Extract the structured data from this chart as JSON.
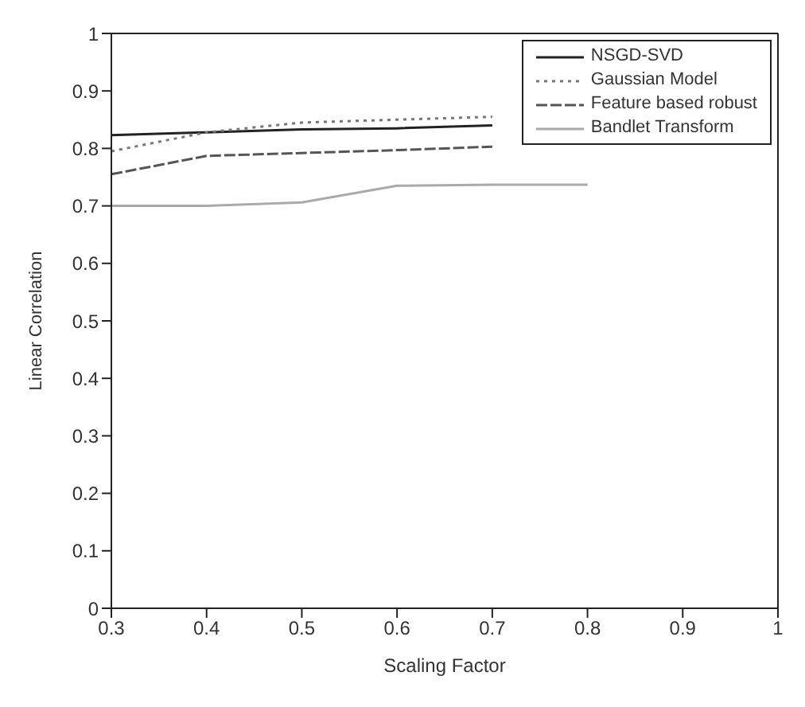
{
  "chart_data": {
    "type": "line",
    "xlabel": "Scaling Factor",
    "ylabel": "Linear Correlation",
    "x": [
      0.3,
      0.4,
      0.5,
      0.6,
      0.7,
      0.8
    ],
    "series": [
      {
        "name": "NSGD-SVD",
        "color": "#222222",
        "line_style": "solid",
        "values": [
          0.823,
          0.828,
          0.833,
          0.835,
          0.84,
          null
        ]
      },
      {
        "name": "Gaussian Model",
        "color": "#777777",
        "line_style": "dotted",
        "values": [
          0.795,
          0.828,
          0.845,
          0.85,
          0.855,
          null
        ]
      },
      {
        "name": "Feature based robust",
        "color": "#555555",
        "line_style": "dashed",
        "values": [
          0.755,
          0.787,
          0.792,
          0.797,
          0.803,
          null
        ]
      },
      {
        "name": "Bandlet Transform",
        "color": "#aaaaaa",
        "line_style": "solid",
        "values": [
          0.7,
          0.7,
          0.706,
          0.735,
          0.737,
          0.737
        ]
      }
    ],
    "xlim": [
      0.3,
      1
    ],
    "xticks": [
      0.3,
      0.4,
      0.5,
      0.6,
      0.7,
      0.8,
      0.9,
      1
    ],
    "ylim": [
      0,
      1
    ],
    "yticks": [
      0,
      0.1,
      0.2,
      0.3,
      0.4,
      0.5,
      0.6,
      0.7,
      0.8,
      0.9,
      1
    ],
    "grid": false,
    "legend": "top right",
    "marker": "none"
  }
}
